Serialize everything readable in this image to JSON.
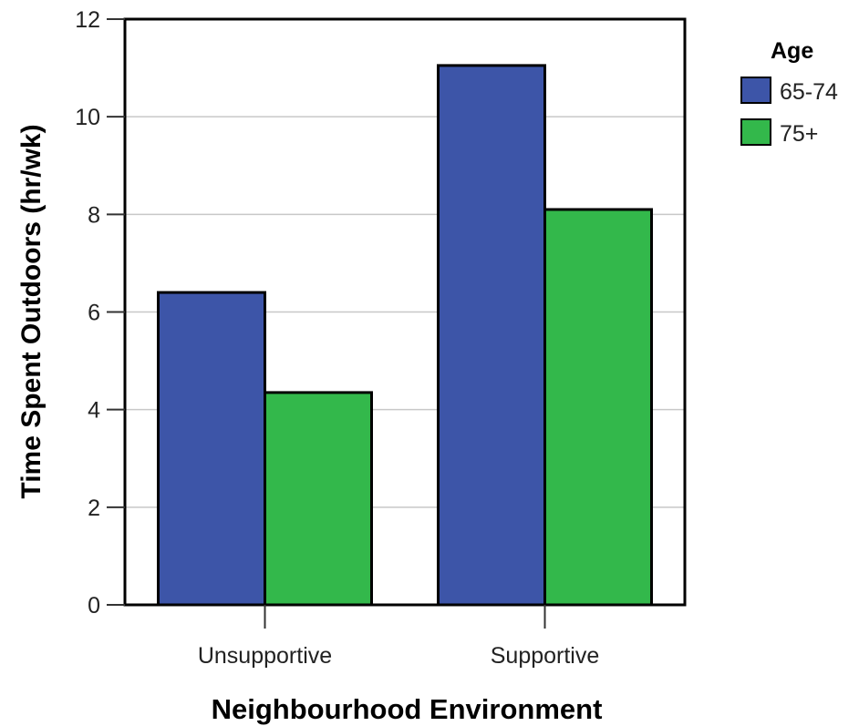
{
  "chart_data": {
    "type": "bar",
    "title": "",
    "xlabel": "Neighbourhood Environment",
    "ylabel": "Time Spent Outdoors (hr/wk)",
    "categories": [
      "Unsupportive",
      "Supportive"
    ],
    "series": [
      {
        "name": "65-74",
        "values": [
          6.4,
          11.05
        ],
        "color": "#3d55a8"
      },
      {
        "name": "75+",
        "values": [
          4.35,
          8.1
        ],
        "color": "#33b84b"
      }
    ],
    "ylim": [
      0,
      12
    ],
    "yticks": [
      0,
      2,
      4,
      6,
      8,
      10,
      12
    ],
    "grid": true,
    "legend": {
      "title": "Age",
      "position": "top-right, outside plot"
    }
  }
}
